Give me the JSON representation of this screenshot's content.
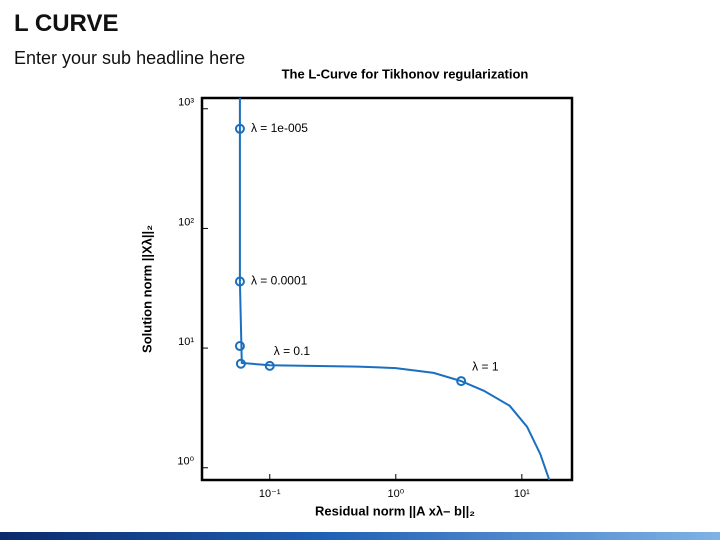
{
  "header": {
    "title": "L CURVE",
    "subtitle": "Enter your sub headline here"
  },
  "chart_data": {
    "type": "line",
    "title": "The L-Curve for Tikhonov regularization",
    "xlabel": "Residual norm ||A xλ– b||₂",
    "ylabel": "Solution norm ||Xλ||₂",
    "xscale": "log",
    "yscale": "log",
    "xlim": [
      0.029,
      25
    ],
    "ylim": [
      0.79,
      1230
    ],
    "xticks": [
      {
        "value": 0.1,
        "label": "10⁻¹"
      },
      {
        "value": 1,
        "label": "10⁰"
      },
      {
        "value": 10,
        "label": "10¹"
      }
    ],
    "yticks": [
      {
        "value": 1,
        "label": "10⁰"
      },
      {
        "value": 10,
        "label": "10¹"
      },
      {
        "value": 100,
        "label": "10²"
      },
      {
        "value": 1000,
        "label": "10³"
      }
    ],
    "series": [
      {
        "color": "#1a6fbf",
        "x": [
          0.058,
          0.058,
          0.058,
          0.06,
          0.1,
          0.5,
          1,
          2,
          3.3,
          5,
          8,
          11,
          14,
          16.5
        ],
        "values": [
          1230,
          680,
          36,
          7.5,
          7.2,
          7.0,
          6.8,
          6.2,
          5.3,
          4.4,
          3.3,
          2.2,
          1.3,
          0.79
        ]
      }
    ],
    "markers": {
      "color": "#1a6fbf",
      "x": [
        0.058,
        0.058,
        0.058,
        0.059,
        0.1,
        3.3
      ],
      "values": [
        680,
        36,
        10.4,
        7.4,
        7.1,
        5.3
      ],
      "labels": [
        "λ = 1e-005",
        "λ = 0.0001",
        null,
        null,
        "λ = 0.1",
        "λ = 1"
      ]
    }
  }
}
